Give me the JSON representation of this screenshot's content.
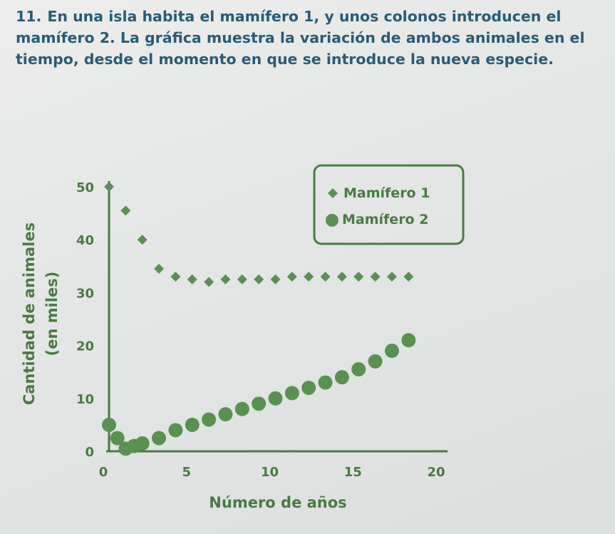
{
  "problem": {
    "number": "11.",
    "line1": "En una isla habita el mamífero 1, y unos colonos introducen el",
    "line2": "mamífero 2. La gráfica muestra la variación de ambos animales en el",
    "line3": "tiempo, desde el momento en que se introduce la nueva especie."
  },
  "colors": {
    "text": "#2a5b77",
    "chart": "#4a7a43",
    "series1": "#5c8f55",
    "series2": "#5a9152"
  },
  "chart_data": {
    "type": "scatter",
    "xlabel": "Número de años",
    "ylabel": "Cantidad de animales",
    "ylabel2": "(en miles)",
    "xlim": [
      0,
      20
    ],
    "ylim": [
      0,
      50
    ],
    "xticks": [
      "0",
      "5",
      "10",
      "15",
      "20"
    ],
    "yticks": [
      "0",
      "10",
      "20",
      "30",
      "40",
      "50"
    ],
    "grid": false,
    "legend_position": "top-right",
    "series": [
      {
        "name": "Mamífero 1",
        "marker": "diamond",
        "x": [
          0,
          1,
          2,
          3,
          4,
          5,
          6,
          7,
          8,
          9,
          10,
          11,
          12,
          13,
          14,
          15,
          16,
          17,
          18
        ],
        "y": [
          50,
          45.5,
          40,
          34.5,
          33,
          32.5,
          32,
          32.5,
          32.5,
          32.5,
          32.5,
          33,
          33,
          33,
          33,
          33,
          33,
          33,
          33
        ]
      },
      {
        "name": "Mamífero 2",
        "marker": "circle",
        "x": [
          0,
          0.5,
          1,
          1.5,
          2,
          3,
          4,
          5,
          6,
          7,
          8,
          9,
          10,
          11,
          12,
          13,
          14,
          15,
          16,
          17,
          18
        ],
        "y": [
          5,
          2.5,
          0.5,
          1,
          1.5,
          2.5,
          4,
          5,
          6,
          7,
          8,
          9,
          10,
          11,
          12,
          13,
          14,
          15.5,
          17,
          19,
          21
        ]
      }
    ]
  }
}
